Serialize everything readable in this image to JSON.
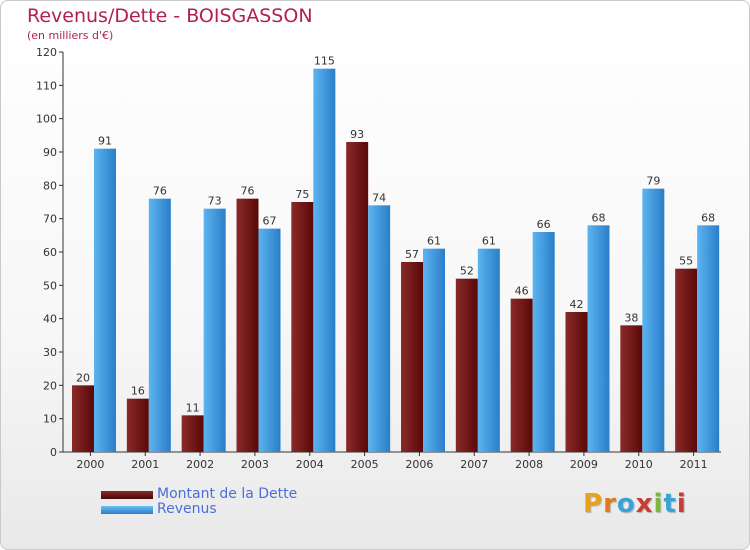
{
  "title": "Revenus/Dette - BOISGASSON",
  "subtitle": "(en milliers d'€)",
  "legend": [
    {
      "label": "Montant de la Dette",
      "color": "#6d1212"
    },
    {
      "label": "Revenus",
      "color": "#3d9be3"
    }
  ],
  "logo_text": "Proxiti",
  "logo_colors": [
    "#e8a21a",
    "#e07a1a",
    "#3aa2d6",
    "#c93c2f",
    "#7cb83a",
    "#3aa2d6",
    "#c93c2f"
  ],
  "chart_data": {
    "type": "bar",
    "categories": [
      "2000",
      "2001",
      "2002",
      "2003",
      "2004",
      "2005",
      "2006",
      "2007",
      "2008",
      "2009",
      "2010",
      "2011"
    ],
    "series": [
      {
        "name": "Montant de la Dette",
        "values": [
          20,
          16,
          11,
          76,
          75,
          93,
          57,
          52,
          46,
          42,
          38,
          55
        ]
      },
      {
        "name": "Revenus",
        "values": [
          91,
          76,
          73,
          67,
          115,
          74,
          61,
          61,
          66,
          68,
          79,
          68
        ]
      }
    ],
    "ylim": [
      0,
      120
    ],
    "yticks": [
      0,
      10,
      20,
      30,
      40,
      50,
      60,
      70,
      80,
      90,
      100,
      110,
      120
    ],
    "grid": false,
    "legend_position": "bottom-left"
  }
}
